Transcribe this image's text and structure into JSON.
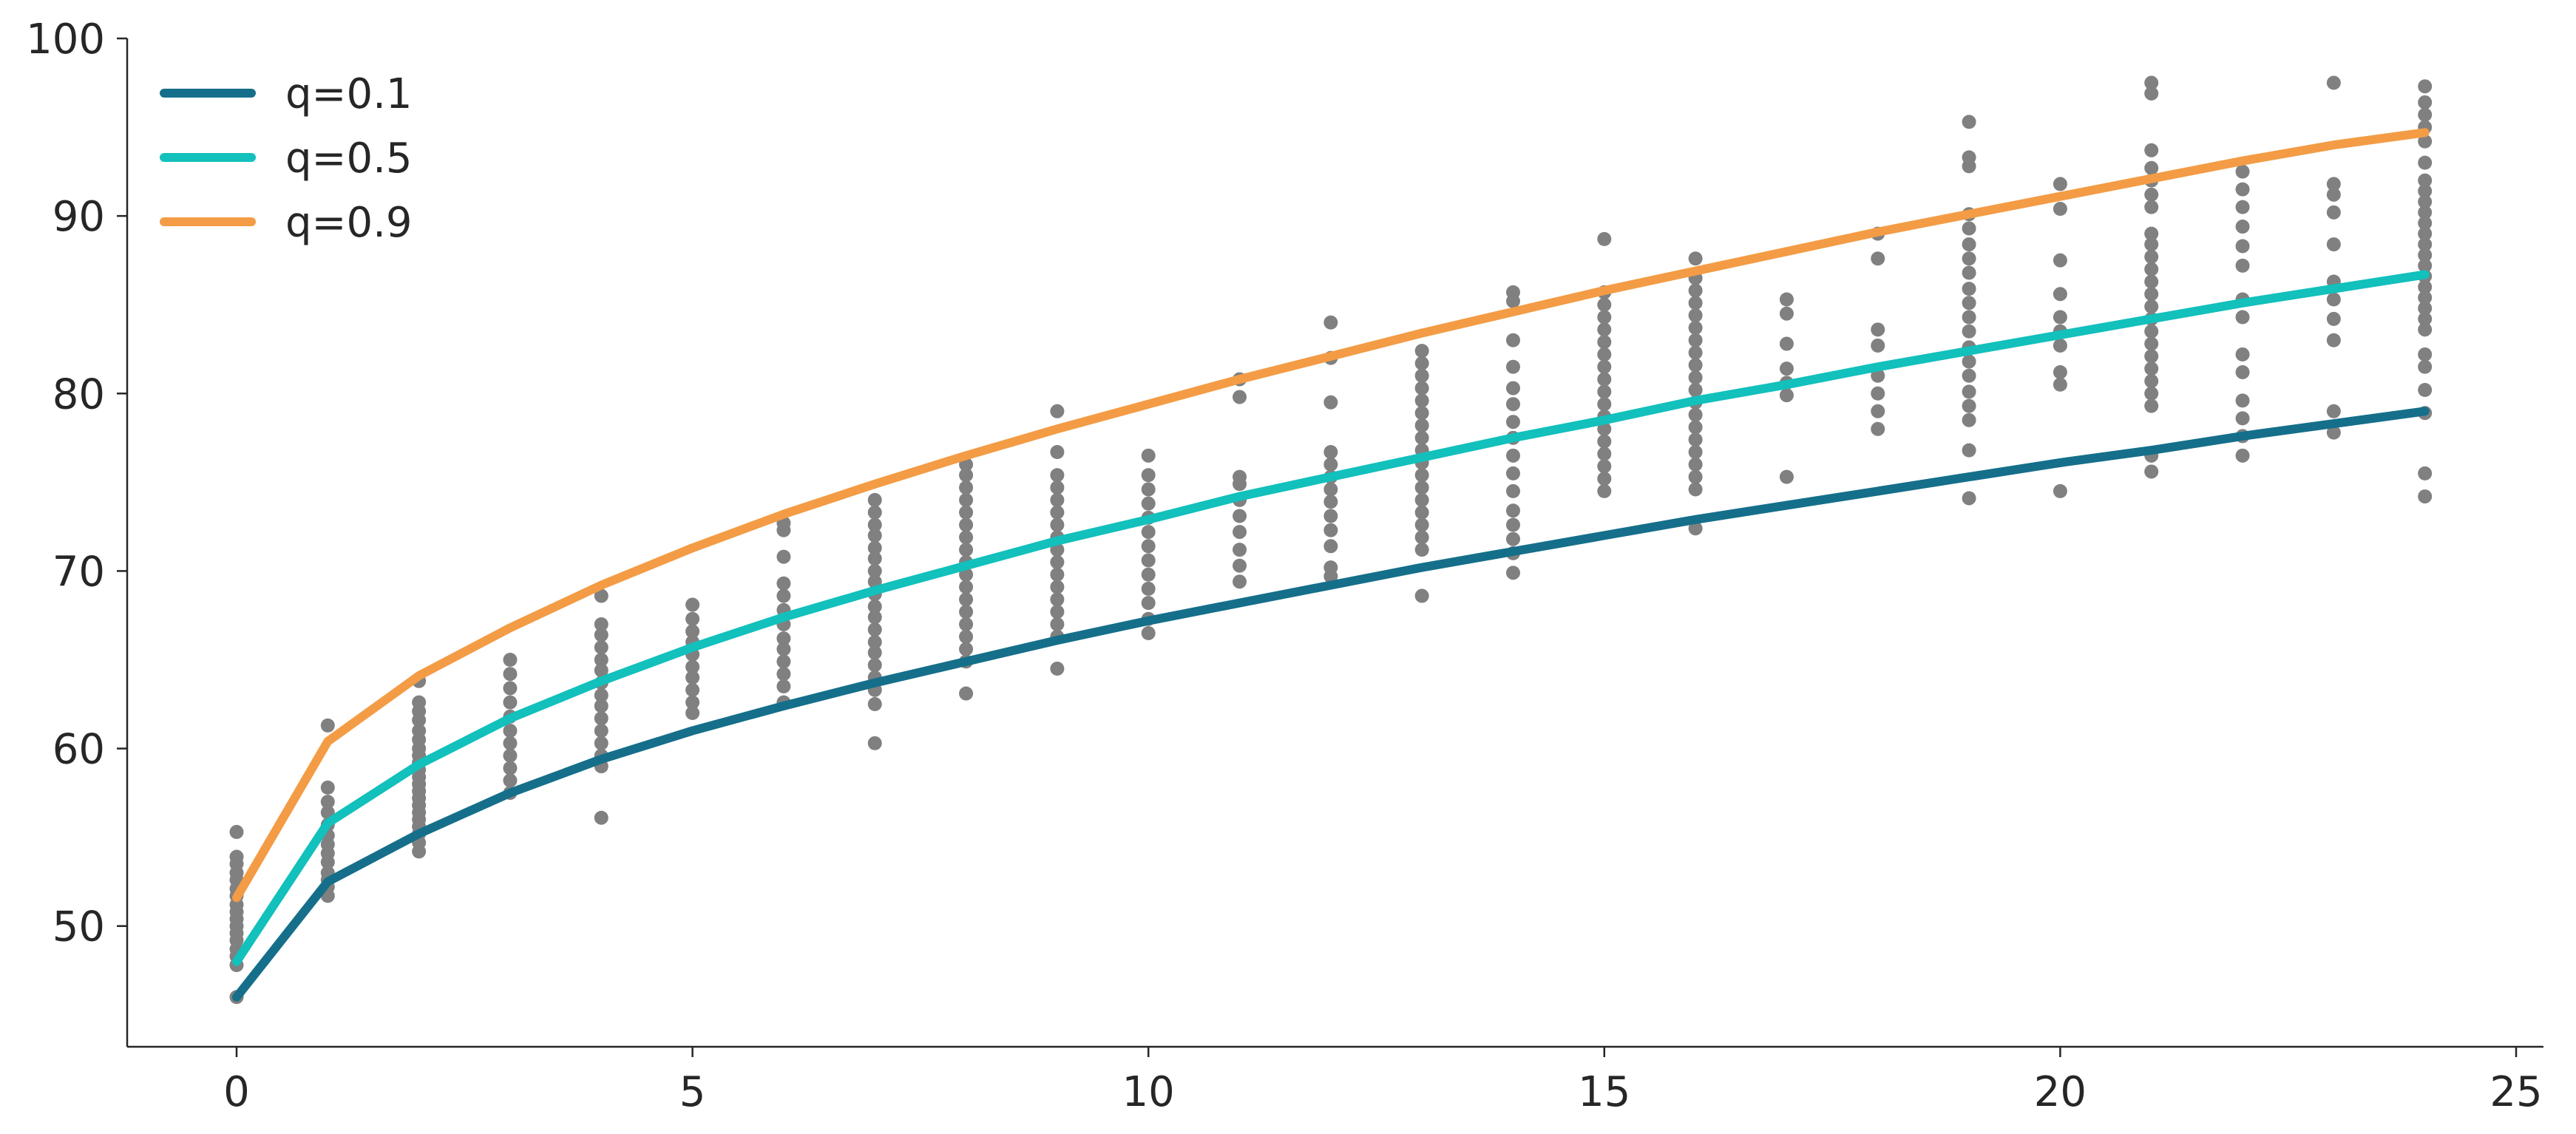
{
  "chart_data": {
    "type": "scatter",
    "title": "",
    "xlabel": "",
    "ylabel": "",
    "xlim": [
      -1.2,
      25.3
    ],
    "ylim": [
      43.2,
      100
    ],
    "x_ticks": [
      0,
      5,
      10,
      15,
      20,
      25
    ],
    "x_tick_labels": [
      "0",
      "5",
      "10",
      "15",
      "20",
      "25"
    ],
    "y_ticks": [
      50,
      60,
      70,
      80,
      90,
      100
    ],
    "y_tick_labels": [
      "50",
      "60",
      "70",
      "80",
      "90",
      "100"
    ],
    "grid": false,
    "legend_position": "top-left",
    "point_color": "#808080",
    "points": [
      {
        "x": 0,
        "y": [
          46,
          47.8,
          48.3,
          48.7,
          49.2,
          49.6,
          50,
          50.4,
          50.8,
          51.2,
          51.7,
          52.1,
          52.6,
          53,
          53.5,
          53.9,
          55.3
        ]
      },
      {
        "x": 1,
        "y": [
          51.7,
          52.2,
          52.6,
          53,
          53.6,
          54.1,
          54.6,
          55.1,
          55.7,
          56.4,
          57,
          57.8,
          61.3
        ]
      },
      {
        "x": 2,
        "y": [
          54.2,
          54.7,
          55.2,
          55.6,
          56,
          56.4,
          56.8,
          57.2,
          57.6,
          58,
          58.4,
          58.8,
          59.2,
          59.6,
          60,
          60.5,
          61,
          61.6,
          62.1,
          62.6,
          63.8
        ]
      },
      {
        "x": 3,
        "y": [
          57.5,
          58.2,
          58.9,
          59.6,
          60.3,
          61,
          61.8,
          62.6,
          63.4,
          64.2,
          65
        ]
      },
      {
        "x": 4,
        "y": [
          56.1,
          59,
          59.6,
          60.3,
          61,
          61.7,
          62.4,
          63,
          63.7,
          64.4,
          65,
          65.7,
          66.4,
          67,
          68.6
        ]
      },
      {
        "x": 5,
        "y": [
          62,
          62.6,
          63.3,
          64,
          64.6,
          65.3,
          66,
          66.6,
          67.3,
          68.1
        ]
      },
      {
        "x": 6,
        "y": [
          62.6,
          63.5,
          64.2,
          64.9,
          65.6,
          66.2,
          67,
          67.8,
          68.6,
          69.3,
          70.8,
          72.3,
          72.7
        ]
      },
      {
        "x": 7,
        "y": [
          60.3,
          62.5,
          63.3,
          64,
          64.7,
          65.4,
          66,
          66.7,
          67.4,
          68,
          68.7,
          69.4,
          70,
          70.7,
          71.3,
          72,
          72.6,
          73.3,
          74
        ]
      },
      {
        "x": 8,
        "y": [
          63.1,
          64.9,
          65.6,
          66.3,
          67,
          67.7,
          68.4,
          69.1,
          69.8,
          70.5,
          71.2,
          71.9,
          72.6,
          73.3,
          74,
          74.7,
          75.4,
          76
        ]
      },
      {
        "x": 9,
        "y": [
          64.5,
          66.3,
          67,
          67.7,
          68.4,
          69.1,
          69.8,
          70.5,
          71.2,
          71.9,
          72.6,
          73.3,
          74,
          74.7,
          75.4,
          76.7,
          79
        ]
      },
      {
        "x": 10,
        "y": [
          66.5,
          67.3,
          68.2,
          69,
          69.8,
          70.6,
          71.4,
          72.2,
          73,
          73.8,
          74.6,
          75.4,
          76.5
        ]
      },
      {
        "x": 11,
        "y": [
          69.4,
          70.3,
          71.2,
          72.2,
          73.1,
          74,
          74.9,
          75.3,
          79.8,
          80.8
        ]
      },
      {
        "x": 12,
        "y": [
          69.7,
          70.2,
          71.4,
          72.3,
          73.1,
          73.9,
          74.6,
          75.3,
          76,
          76.7,
          79.5,
          82,
          84
        ]
      },
      {
        "x": 13,
        "y": [
          68.6,
          71.2,
          71.9,
          72.6,
          73.3,
          74,
          74.7,
          75.4,
          76.1,
          76.8,
          77.5,
          78.2,
          78.9,
          79.6,
          80.3,
          81,
          81.7,
          82.4
        ]
      },
      {
        "x": 14,
        "y": [
          69.9,
          71,
          71.8,
          72.6,
          73.4,
          74.5,
          75.5,
          76.5,
          77.5,
          78.4,
          79.4,
          80.3,
          81.5,
          83,
          85.2,
          85.7
        ]
      },
      {
        "x": 15,
        "y": [
          74.5,
          75.2,
          75.9,
          76.6,
          77.3,
          78,
          78.7,
          79.4,
          80.1,
          80.8,
          81.5,
          82.2,
          82.9,
          83.6,
          84.3,
          85,
          85.7,
          88.7
        ]
      },
      {
        "x": 16,
        "y": [
          72.4,
          74.6,
          75.3,
          76,
          76.7,
          77.4,
          78.1,
          78.8,
          79.5,
          80.2,
          80.9,
          81.6,
          82.3,
          83,
          83.7,
          84.4,
          85.1,
          85.8,
          86.5,
          87.6
        ]
      },
      {
        "x": 17,
        "y": [
          75.3,
          79.9,
          80.6,
          81.4,
          82.8,
          84.5,
          85.3
        ]
      },
      {
        "x": 18,
        "y": [
          78,
          79,
          80,
          81,
          82.7,
          83.6,
          87.6,
          89
        ]
      },
      {
        "x": 19,
        "y": [
          74.1,
          76.8,
          78.5,
          79.3,
          80.1,
          81,
          81.8,
          82.6,
          83.5,
          84.3,
          85.1,
          85.9,
          86.8,
          87.6,
          88.4,
          89.3,
          90.1,
          92.8,
          93.3,
          95.3
        ]
      },
      {
        "x": 20,
        "y": [
          74.5,
          80.5,
          81.2,
          82.7,
          83.5,
          84.3,
          85.6,
          87.5,
          90.4,
          91.8
        ]
      },
      {
        "x": 21,
        "y": [
          75.6,
          76.5,
          79.3,
          80,
          80.7,
          81.4,
          82.1,
          82.8,
          83.5,
          84.2,
          84.9,
          85.6,
          86.3,
          87,
          87.7,
          88.4,
          89,
          90.5,
          91.2,
          92,
          92.7,
          93.7,
          96.9,
          97.5
        ]
      },
      {
        "x": 22,
        "y": [
          76.5,
          77.6,
          78.6,
          79.6,
          81.2,
          82.2,
          84.3,
          85.3,
          87.2,
          88.3,
          89.4,
          90.5,
          91.5,
          92.5
        ]
      },
      {
        "x": 23,
        "y": [
          77.8,
          79,
          83,
          84.2,
          85.3,
          86.3,
          88.4,
          90.2,
          91.2,
          91.8,
          97.5
        ]
      },
      {
        "x": 24,
        "y": [
          74.2,
          75.5,
          78.9,
          80.2,
          81.5,
          82.2,
          83.6,
          84.2,
          84.8,
          85.4,
          86,
          86.6,
          87.2,
          87.8,
          88.4,
          89,
          89.6,
          90.2,
          90.8,
          91.4,
          92,
          93,
          94.2,
          95,
          95.7,
          96.4,
          97.3
        ]
      }
    ],
    "series": [
      {
        "name": "q=0.1",
        "color": "#156f8a",
        "x": [
          0,
          1,
          2,
          3,
          4,
          5,
          6,
          7,
          8,
          9,
          10,
          11,
          12,
          13,
          14,
          15,
          16,
          17,
          18,
          19,
          20,
          21,
          22,
          23,
          24
        ],
        "values": [
          46,
          52.5,
          55.2,
          57.5,
          59.4,
          61,
          62.4,
          63.7,
          64.9,
          66.1,
          67.2,
          68.2,
          69.2,
          70.2,
          71.1,
          72,
          72.9,
          73.7,
          74.5,
          75.3,
          76.1,
          76.8,
          77.6,
          78.3,
          79
        ]
      },
      {
        "name": "q=0.5",
        "color": "#12c0bc",
        "x": [
          0,
          1,
          2,
          3,
          4,
          5,
          6,
          7,
          8,
          9,
          10,
          11,
          12,
          13,
          14,
          15,
          16,
          17,
          18,
          19,
          20,
          21,
          22,
          23,
          24
        ],
        "values": [
          48,
          55.8,
          59.1,
          61.7,
          63.8,
          65.7,
          67.4,
          68.9,
          70.3,
          71.7,
          72.9,
          74.2,
          75.3,
          76.4,
          77.5,
          78.5,
          79.6,
          80.5,
          81.5,
          82.4,
          83.3,
          84.2,
          85.1,
          85.9,
          86.7
        ]
      },
      {
        "name": "q=0.9",
        "color": "#f39c45",
        "x": [
          0,
          1,
          2,
          3,
          4,
          5,
          6,
          7,
          8,
          9,
          10,
          11,
          12,
          13,
          14,
          15,
          16,
          17,
          18,
          19,
          20,
          21,
          22,
          23,
          24
        ],
        "values": [
          51.6,
          60.4,
          64.1,
          66.8,
          69.2,
          71.3,
          73.2,
          74.9,
          76.5,
          78,
          79.4,
          80.8,
          82.1,
          83.4,
          84.6,
          85.8,
          86.9,
          88,
          89.1,
          90.1,
          91.1,
          92.1,
          93.1,
          94,
          94.7
        ]
      }
    ]
  }
}
